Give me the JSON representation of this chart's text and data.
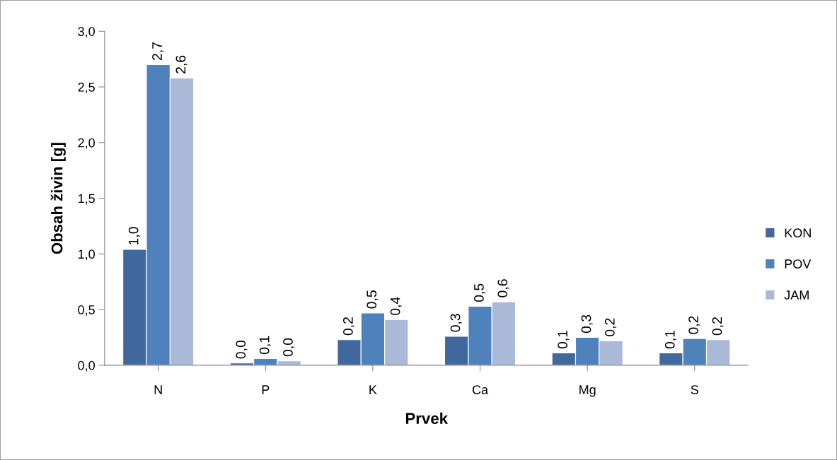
{
  "chart_data": {
    "type": "bar",
    "xlabel": "Prvek",
    "ylabel": "Obsah živin [g]",
    "categories": [
      "N",
      "P",
      "K",
      "Ca",
      "Mg",
      "S"
    ],
    "series": [
      {
        "name": "KON",
        "color": "#41689c",
        "values": [
          1.04,
          0.02,
          0.23,
          0.26,
          0.11,
          0.11
        ],
        "value_labels": [
          "1,0",
          "0,0",
          "0,2",
          "0,3",
          "0,1",
          "0,1"
        ]
      },
      {
        "name": "POV",
        "color": "#4f81bd",
        "values": [
          2.7,
          0.06,
          0.47,
          0.53,
          0.25,
          0.24
        ],
        "value_labels": [
          "2,7",
          "0,1",
          "0,5",
          "0,5",
          "0,3",
          "0,2"
        ]
      },
      {
        "name": "JAM",
        "color": "#aab9d7",
        "values": [
          2.58,
          0.04,
          0.41,
          0.57,
          0.22,
          0.23
        ],
        "value_labels": [
          "2,6",
          "0,0",
          "0,4",
          "0,6",
          "0,2",
          "0,2"
        ]
      }
    ],
    "ylim": [
      0,
      3
    ],
    "yticks": [
      {
        "value": 0,
        "label": "0,0"
      },
      {
        "value": 0.5,
        "label": "0,5"
      },
      {
        "value": 1,
        "label": "1,0"
      },
      {
        "value": 1.5,
        "label": "1,5"
      },
      {
        "value": 2,
        "label": "2,0"
      },
      {
        "value": 2.5,
        "label": "2,5"
      },
      {
        "value": 3,
        "label": "3,0"
      }
    ],
    "grid": false,
    "legend": "right"
  }
}
